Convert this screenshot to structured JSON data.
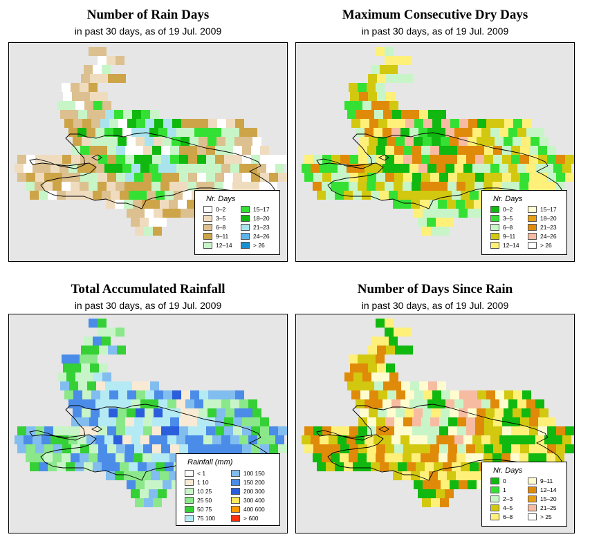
{
  "panels": [
    {
      "title": "Number of Rain Days",
      "subtitle": "in past 30 days, as of  19 Jul. 2009",
      "legend_title": "Nr. Days",
      "legend": [
        {
          "label": "0–2",
          "color": "#ffffff"
        },
        {
          "label": "3–5",
          "color": "#efdcbf"
        },
        {
          "label": "6–8",
          "color": "#dcc08f"
        },
        {
          "label": "9–11",
          "color": "#cda448"
        },
        {
          "label": "12–14",
          "color": "#c8f5c8"
        },
        {
          "label": "15–17",
          "color": "#35e035"
        },
        {
          "label": "18–20",
          "color": "#10b810"
        },
        {
          "label": "21–23",
          "color": "#a8e3ee"
        },
        {
          "label": "24–26",
          "color": "#5cb4ea"
        },
        {
          "label": "> 26",
          "color": "#1a8fd0"
        }
      ],
      "palette": [
        "#ffffff",
        "#efdcbf",
        "#dcc08f",
        "#cda448",
        "#c8f5c8",
        "#35e035",
        "#10b810",
        "#a8e3ee"
      ]
    },
    {
      "title": "Maximum Consecutive Dry Days",
      "subtitle": "in past 30 days, as of  19 Jul. 2009",
      "legend_title": "Nr. Days",
      "legend": [
        {
          "label": "0–2",
          "color": "#10b810"
        },
        {
          "label": "3–5",
          "color": "#35e035"
        },
        {
          "label": "6–8",
          "color": "#c8f5c8"
        },
        {
          "label": "9–11",
          "color": "#d2c810"
        },
        {
          "label": "12–14",
          "color": "#fff07a"
        },
        {
          "label": "15–17",
          "color": "#fffccf"
        },
        {
          "label": "18–20",
          "color": "#e8a010"
        },
        {
          "label": "21–23",
          "color": "#e08a0a"
        },
        {
          "label": "24–26",
          "color": "#f7bba2"
        },
        {
          "label": "> 26",
          "color": "#ffffff"
        }
      ],
      "palette": [
        "#35e035",
        "#c8f5c8",
        "#d2c810",
        "#fff07a",
        "#e08a0a",
        "#10b810",
        "#f7bba2"
      ]
    },
    {
      "title": "Total Accumulated Rainfall",
      "subtitle": "in past 30 days, as of  19 Jul. 2009",
      "legend_title": "Rainfall (mm)",
      "legend": [
        {
          "label": "< 1",
          "color": "#ffffff"
        },
        {
          "label": "1    10",
          "color": "#f8ead4"
        },
        {
          "label": "10    25",
          "color": "#c8f5c8"
        },
        {
          "label": "25    50",
          "color": "#8ae88a"
        },
        {
          "label": "50    75",
          "color": "#35d035"
        },
        {
          "label": "75   100",
          "color": "#b4eaf4"
        },
        {
          "label": "100   150",
          "color": "#82bdf0"
        },
        {
          "label": "150   200",
          "color": "#4a8ce8"
        },
        {
          "label": "200   300",
          "color": "#2a5edc"
        },
        {
          "label": "300   400",
          "color": "#ffe860"
        },
        {
          "label": "400   600",
          "color": "#ff9a00"
        },
        {
          "label": "> 600",
          "color": "#ff3010"
        }
      ],
      "palette": [
        "#8ae88a",
        "#35d035",
        "#c8f5c8",
        "#82bdf0",
        "#4a8ce8",
        "#b4eaf4",
        "#f8ead4",
        "#2a5edc"
      ]
    },
    {
      "title": "Number of Days Since Rain",
      "subtitle": "in past 30 days, as of  19 Jul. 2009",
      "legend_title": "Nr. Days",
      "legend": [
        {
          "label": "0",
          "color": "#10b810"
        },
        {
          "label": "1",
          "color": "#35e035"
        },
        {
          "label": "2–3",
          "color": "#c8f5c8"
        },
        {
          "label": "4–5",
          "color": "#d2c810"
        },
        {
          "label": "6–8",
          "color": "#fff07a"
        },
        {
          "label": "9–11",
          "color": "#fffccf"
        },
        {
          "label": "12–14",
          "color": "#e08a0a"
        },
        {
          "label": "15–20",
          "color": "#e8a010"
        },
        {
          "label": "21–25",
          "color": "#f7bba2"
        },
        {
          "label": "> 25",
          "color": "#ffffff"
        }
      ],
      "palette": [
        "#10b810",
        "#fff07a",
        "#d2c810",
        "#e08a0a",
        "#fffccf",
        "#c8f5c8",
        "#f7bba2"
      ]
    }
  ]
}
